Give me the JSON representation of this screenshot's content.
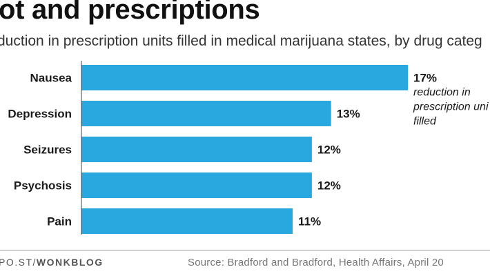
{
  "header": {
    "title": "ot and prescriptions",
    "subtitle": "duction in prescription units filled in medical marijuana states, by drug categ"
  },
  "footer": {
    "credit_prefix": "PO.ST/",
    "credit_brand": "WONKBLOG",
    "source": "Source: Bradford and Bradford, Health Affairs, April 20"
  },
  "colors": {
    "bar": "#29a8e0",
    "axis": "#444444",
    "text": "#1a1a1a"
  },
  "chart_data": {
    "type": "bar",
    "orientation": "horizontal",
    "categories": [
      "Nausea",
      "Depression",
      "Seizures",
      "Psychosis",
      "Pain"
    ],
    "values": [
      17,
      13,
      12,
      12,
      11
    ],
    "value_labels": [
      "17%",
      "13%",
      "12%",
      "12%",
      "11%"
    ],
    "annotation": [
      "reduction in",
      "prescription uni",
      "filled"
    ],
    "xlim": [
      0,
      17
    ],
    "grid": false
  }
}
